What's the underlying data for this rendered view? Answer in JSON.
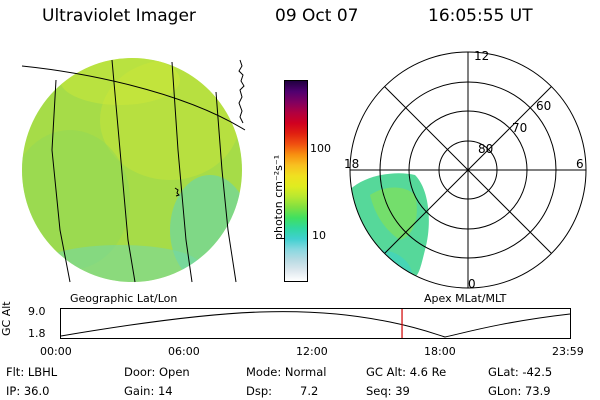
{
  "header": {
    "title": "Ultraviolet Imager",
    "date": "09 Oct 07",
    "time": "16:05:55 UT"
  },
  "colorbar": {
    "label": "photon cm⁻²s⁻¹",
    "tick_high": "100",
    "tick_low": "10",
    "colors": [
      "#ffffff",
      "#dde8ee",
      "#b8dbe3",
      "#88d8e0",
      "#40d0d0",
      "#30d8a0",
      "#40e060",
      "#80e040",
      "#b8e830",
      "#e0ec20",
      "#f0e020",
      "#f8c020",
      "#f89010",
      "#f05010",
      "#e02010",
      "#d00020",
      "#b00040",
      "#800060",
      "#500070",
      "#200040"
    ]
  },
  "left_panel": {
    "caption": "Geographic Lat/Lon"
  },
  "polar_panel": {
    "caption": "Apex MLat/MLT",
    "mlt_labels": [
      "12",
      "18",
      "6",
      "0"
    ],
    "lat_labels": [
      "60",
      "70",
      "80"
    ]
  },
  "timeline": {
    "y_label": "GC Alt",
    "y_max": "9.0",
    "y_min": "1.8",
    "ticks": [
      "00:00",
      "06:00",
      "12:00",
      "18:00",
      "23:59"
    ],
    "current_time_fraction": 0.67
  },
  "info": {
    "flt": "Flt: LBHL",
    "ip": "IP: 36.0",
    "door": "Door: Open",
    "gain": "Gain: 14",
    "mode": "Mode: Normal",
    "dsp_label": "Dsp:",
    "dsp_value": "7.2",
    "gc_alt": "GC Alt: 4.6 Re",
    "seq": "Seq: 39",
    "glat": "GLat: -42.5",
    "glon": "GLon: 73.9"
  }
}
